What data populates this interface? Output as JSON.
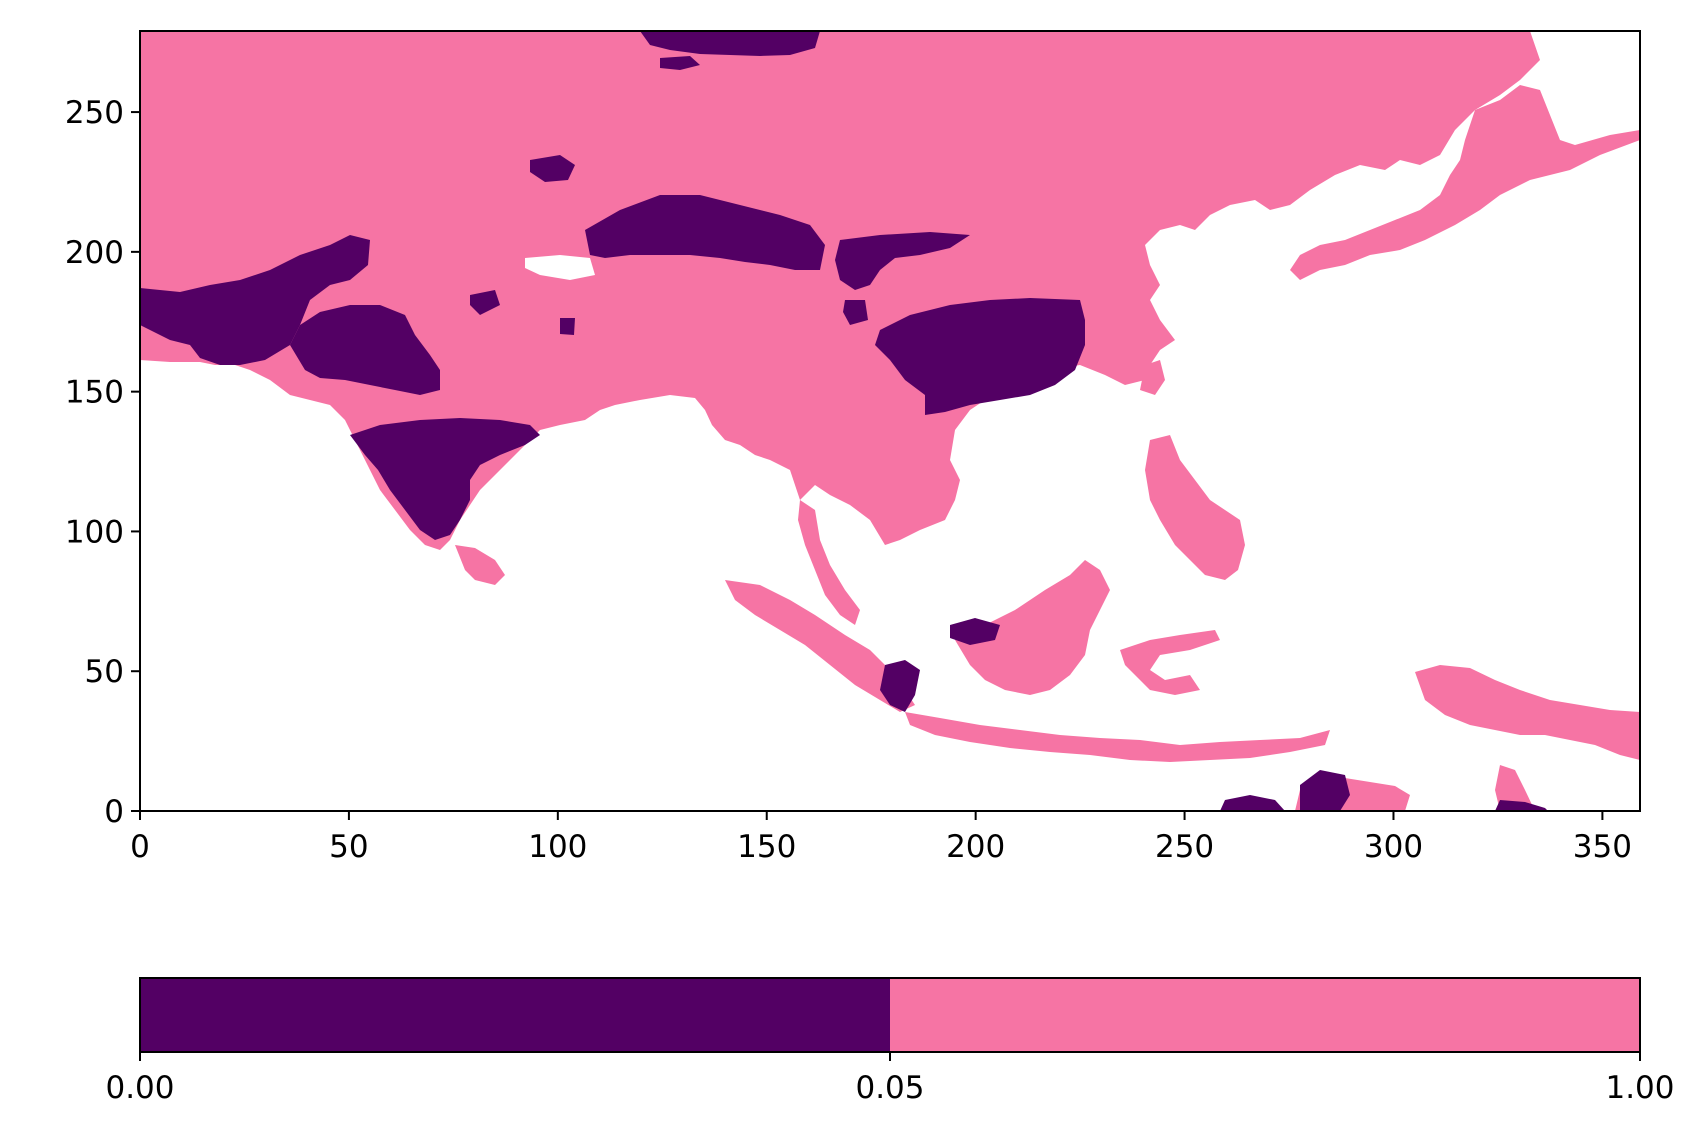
{
  "chart_data": {
    "type": "heatmap",
    "title": "",
    "xlabel": "",
    "ylabel": "",
    "xlim": [
      0,
      359
    ],
    "ylim": [
      0,
      279
    ],
    "x_ticks": [
      "0",
      "50",
      "100",
      "150",
      "200",
      "250",
      "300",
      "350"
    ],
    "y_ticks": [
      "0",
      "50",
      "100",
      "150",
      "200",
      "250"
    ],
    "grid": false,
    "colors": {
      "land_high": "#f674a4",
      "land_low": "#530064",
      "no_data": "#ffffff"
    },
    "colorbar": {
      "orientation": "horizontal",
      "placement": "bottom",
      "boundaries": [
        0.0,
        0.05,
        1.0
      ],
      "tick_labels": [
        "0.00",
        "0.05",
        "1.00"
      ],
      "segment_colors": [
        "#530064",
        "#f674a4"
      ]
    }
  }
}
